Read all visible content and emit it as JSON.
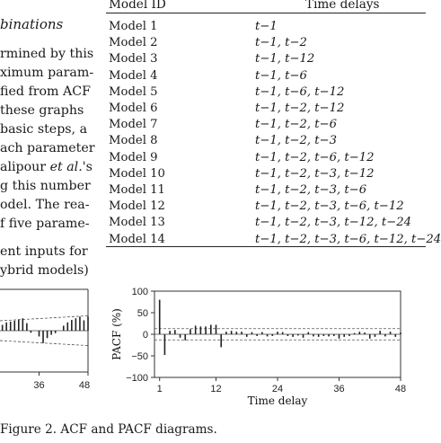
{
  "left_text": {
    "heading": "binations",
    "lines": [
      "rmined by this",
      "ximum param-",
      "fied from ACF",
      "  these graphs",
      " basic steps, a",
      "ach parameter",
      "alipour et al.'s",
      "g this number",
      "odel. The rea-",
      "f five parame-",
      "",
      "ent inputs for",
      "ybrid models)"
    ]
  },
  "table": {
    "headers": [
      "Model ID",
      "Time delays"
    ],
    "rows": [
      [
        "Model 1",
        "t−1"
      ],
      [
        "Model 2",
        "t−1, t−2"
      ],
      [
        "Model 3",
        "t−1, t−12"
      ],
      [
        "Model 4",
        "t−1, t−6"
      ],
      [
        "Model 5",
        "t−1, t−6, t−12"
      ],
      [
        "Model 6",
        "t−1, t−2, t−12"
      ],
      [
        "Model 7",
        "t−1, t−2, t−6"
      ],
      [
        "Model 8",
        "t−1, t−2, t−3"
      ],
      [
        "Model 9",
        "t−1, t−2, t−6, t−12"
      ],
      [
        "Model 10",
        "t−1, t−2, t−3, t−12"
      ],
      [
        "Model 11",
        "t−1, t−2, t−3, t−6"
      ],
      [
        "Model 12",
        "t−1, t−2, t−3, t−6, t−12"
      ],
      [
        "Model 13",
        "t−1, t−2, t−3, t−12, t−24"
      ],
      [
        "Model 14",
        "t−1, t−2, t−3, t−6, t−12, t−24"
      ]
    ]
  },
  "caption": "Figure 2. ACF and PACF diagrams.",
  "chart_data": [
    {
      "type": "bar",
      "partial": "ACF (left panel, cropped)",
      "x_tick_labels": [
        "36",
        "48"
      ],
      "x": [
        26,
        27,
        28,
        29,
        30,
        31,
        32,
        33,
        34,
        35,
        36,
        37,
        38,
        39,
        40,
        41,
        42,
        43,
        44,
        45,
        46,
        47,
        48
      ],
      "values": [
        0.0,
        0.14,
        0.2,
        0.22,
        0.24,
        0.27,
        0.3,
        0.18,
        -0.05,
        0.0,
        -0.14,
        -0.3,
        -0.18,
        -0.1,
        -0.06,
        0.0,
        0.12,
        0.2,
        0.26,
        0.3,
        0.34,
        0.25,
        0.34
      ],
      "confidence_bounds": "dashed, widening with lag"
    },
    {
      "type": "bar",
      "title": "",
      "xlabel": "Time delay",
      "ylabel": "PACF (%)",
      "xlim": [
        0,
        48
      ],
      "ylim": [
        -100,
        100
      ],
      "y_ticks": [
        100,
        50,
        0,
        -50,
        -100
      ],
      "x_ticks": [
        1,
        12,
        24,
        36,
        48
      ],
      "confidence_bounds": [
        13,
        -13
      ],
      "x": [
        1,
        2,
        3,
        4,
        5,
        6,
        7,
        8,
        9,
        10,
        11,
        12,
        13,
        14,
        15,
        16,
        17,
        18,
        19,
        20,
        21,
        22,
        23,
        24,
        25,
        26,
        27,
        28,
        29,
        30,
        31,
        32,
        33,
        34,
        35,
        36,
        37,
        38,
        39,
        40,
        41,
        42,
        43,
        44,
        45,
        46,
        47,
        48
      ],
      "values": [
        80,
        -48,
        8,
        10,
        -8,
        -14,
        12,
        20,
        18,
        18,
        22,
        22,
        -30,
        6,
        8,
        6,
        6,
        -6,
        5,
        -4,
        5,
        -5,
        -4,
        6,
        5,
        -4,
        -6,
        -3,
        -8,
        5,
        -5,
        -6,
        -4,
        -5,
        -4,
        -10,
        -6,
        -4,
        3,
        6,
        4,
        -10,
        -6,
        8,
        -5,
        6,
        -6,
        4
      ]
    }
  ]
}
